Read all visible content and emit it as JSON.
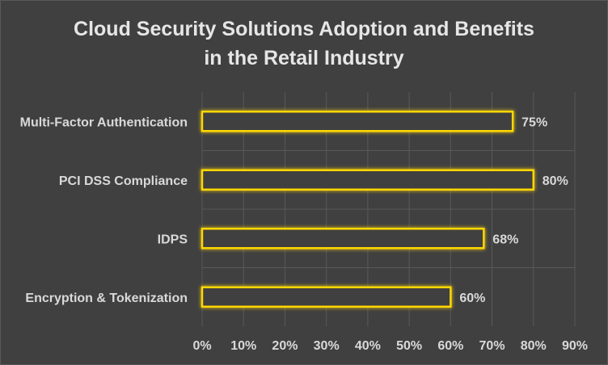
{
  "chart_data": {
    "type": "bar",
    "orientation": "horizontal",
    "title": "Cloud Security Solutions Adoption and Benefits in the Retail Industry",
    "title_lines": [
      "Cloud Security Solutions Adoption and Benefits",
      "in the Retail Industry"
    ],
    "categories": [
      "Multi-Factor Authentication",
      "PCI DSS Compliance",
      "IDPS",
      "Encryption & Tokenization"
    ],
    "values": [
      75,
      80,
      68,
      60
    ],
    "data_labels": [
      "75%",
      "80%",
      "68%",
      "60%"
    ],
    "x_ticks": [
      "0%",
      "10%",
      "20%",
      "30%",
      "40%",
      "50%",
      "60%",
      "70%",
      "80%",
      "90%"
    ],
    "xlim": [
      0,
      90
    ],
    "xlabel": "",
    "ylabel": "",
    "grid": "vertical",
    "legend": "none",
    "colors": {
      "background": "#404040",
      "bar_fill": "#404040",
      "bar_outline": "#ffd700",
      "bar_glow": "#f2c200",
      "grid": "#595959",
      "text": "#d9d9d9"
    }
  }
}
